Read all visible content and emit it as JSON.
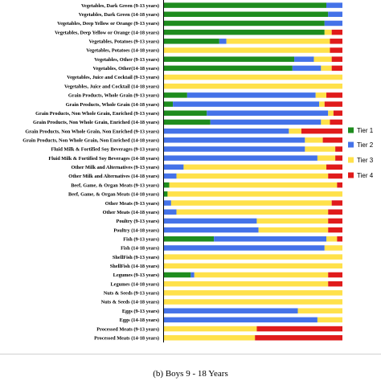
{
  "chart_data": {
    "type": "bar",
    "orientation": "horizontal",
    "stacked": true,
    "normalized_percent": true,
    "caption": "(b) Boys 9 - 18 Years",
    "series": [
      {
        "name": "Tier 1",
        "color": "#1e8c1e"
      },
      {
        "name": "Tier 2",
        "color": "#4472e8"
      },
      {
        "name": "Tier 3",
        "color": "#ffe14a"
      },
      {
        "name": "Tier 4",
        "color": "#e01b1b"
      }
    ],
    "legend_position": "right",
    "categories": [
      "Vegetables, Dark Green (9-13 years)",
      "Vegetables, Dark Green (14-18 years)",
      "Vegetables, Deep Yellow or Orange (9-13 years)",
      "Vegetables, Deep Yellow or Orange (14-18 years)",
      "Vegetables, Potatoes (9-13 years)",
      "Vegetables, Potatoes (14-18 years)",
      "Vegetables, Other (9-13 years)",
      "Vegetables, Other(14-18 years)",
      "Vegetables, Juice and Cocktail (9-13 years)",
      "Vegetables, Juice and Cocktail (14-18 years)",
      "Grain Products, Whole Grain (9-13 years)",
      "Grain Products, Whole Grain (14-18 years)",
      "Grain Products, Non Whole Grain, Enriched (9-13 years)",
      "Grain Products, Non Whole Grain, Enriched (14-18 years)",
      "Grain Products, Non Whole Grain, Non Enriched (9-13 years)",
      "Grain Products, Non Whole Grain, Non Enriched (14-18 years)",
      "Fluid Milk & Fortified Soy Beverages (9-13 years)",
      "Fluid Milk & Fortified Soy Beverages (14-18 years)",
      "Other Milk and Alternatives (9-13 years)",
      "Other Milk and Alternatives (14-18 years)",
      "Beef, Game, & Organ Meats (9-13 years)",
      "Beef, Game, & Organ Meats (14-18 years)",
      "Other Meats (9-13 years)",
      "Other Meats (14-18 years)",
      "Poultry (9-13 years)",
      "Poultry (14-18 years)",
      "Fish (9-13 years)",
      "Fish (14-18 years)",
      "ShellFish (9-13 years)",
      "ShellFish (14-18 years)",
      "Legumes (9-13 years)",
      "Legumes (14-18 years)",
      "Nuts & Seeds (9-13 years)",
      "Nuts & Seeds (14-18 years)",
      "Eggs (9-13 years)",
      "Eggs (14-18 years)",
      "Processed Meats (9-13 years)",
      "Processed Meats (14-18 years)"
    ],
    "values": [
      [
        91,
        9,
        0,
        0
      ],
      [
        92,
        8,
        0,
        0
      ],
      [
        90,
        10,
        0,
        0
      ],
      [
        90,
        0,
        4,
        6
      ],
      [
        31,
        4,
        58,
        7
      ],
      [
        0,
        0,
        93,
        7
      ],
      [
        73,
        11,
        10,
        6
      ],
      [
        72,
        16,
        6,
        6
      ],
      [
        0,
        0,
        100,
        0
      ],
      [
        0,
        0,
        100,
        0
      ],
      [
        13,
        72,
        6,
        9
      ],
      [
        5,
        82,
        3,
        10
      ],
      [
        24,
        68,
        3,
        5
      ],
      [
        26,
        62,
        5,
        7
      ],
      [
        0,
        70,
        7,
        23
      ],
      [
        0,
        79,
        10,
        11
      ],
      [
        0,
        79,
        17,
        4
      ],
      [
        0,
        86,
        10,
        4
      ],
      [
        0,
        11,
        80,
        9
      ],
      [
        0,
        7,
        85,
        8
      ],
      [
        3,
        0,
        94,
        3
      ],
      [
        2,
        0,
        98,
        0
      ],
      [
        0,
        4,
        90,
        6
      ],
      [
        0,
        7,
        85,
        8
      ],
      [
        0,
        52,
        40,
        8
      ],
      [
        0,
        53,
        39,
        8
      ],
      [
        28,
        63,
        6,
        3
      ],
      [
        0,
        90,
        10,
        0
      ],
      [
        0,
        0,
        100,
        0
      ],
      [
        0,
        0,
        100,
        0
      ],
      [
        15,
        2,
        75,
        8
      ],
      [
        0,
        0,
        92,
        8
      ],
      [
        0,
        0,
        100,
        0
      ],
      [
        0,
        0,
        100,
        0
      ],
      [
        0,
        75,
        25,
        0
      ],
      [
        0,
        86,
        14,
        0
      ],
      [
        0,
        0,
        52,
        48
      ],
      [
        0,
        0,
        51,
        49
      ]
    ]
  }
}
